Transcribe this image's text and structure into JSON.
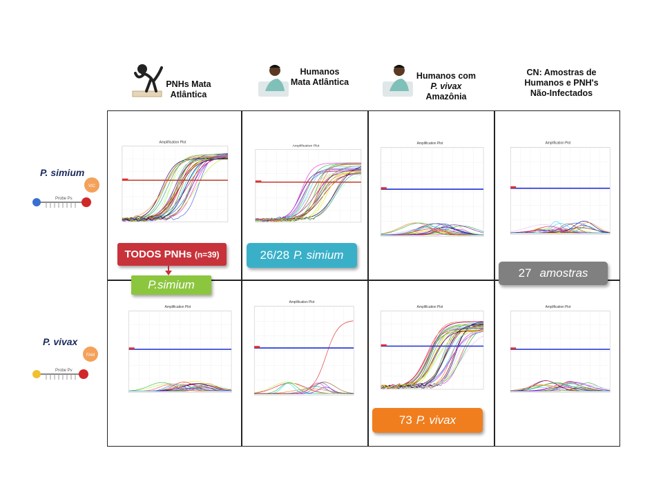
{
  "columns": [
    {
      "lines": [
        "PNHs Mata",
        "Atlântica"
      ],
      "icon": "monkey-icon"
    },
    {
      "lines": [
        "Humanos",
        "Mata Atlântica"
      ],
      "icon": "patient-icon"
    },
    {
      "lines": [
        "Humanos com",
        "P. vivax",
        "Amazônia"
      ],
      "icon": "patient-icon"
    },
    {
      "lines": [
        "CN: Amostras de",
        "Humanos e PNH's",
        "Não-Infectados"
      ]
    }
  ],
  "rows": [
    {
      "label": "P. simium",
      "probe_text": "Probe Ps",
      "tag": "VIC"
    },
    {
      "label": "P. vivax",
      "probe_text": "Probe Pv",
      "tag": "FAM"
    }
  ],
  "plot_title": "Amplification Plot",
  "badges": {
    "todos": {
      "main": "TODOS PNHs",
      "sub": "(n=39)",
      "color": "#c8323a"
    },
    "psimium_green": {
      "text": "P.simium",
      "color": "#8cc63f"
    },
    "b26": {
      "num": "26/28",
      "name": "P. simium",
      "color": "#3ab0c8"
    },
    "b27": {
      "num": "27",
      "name": "amostras",
      "color": "#808080"
    },
    "b73": {
      "num": "73",
      "name": "P. vivax",
      "color": "#f07e1e"
    }
  },
  "colors": {
    "threshold_red": "#c0392b",
    "threshold_blue": "#2a3cd8"
  }
}
